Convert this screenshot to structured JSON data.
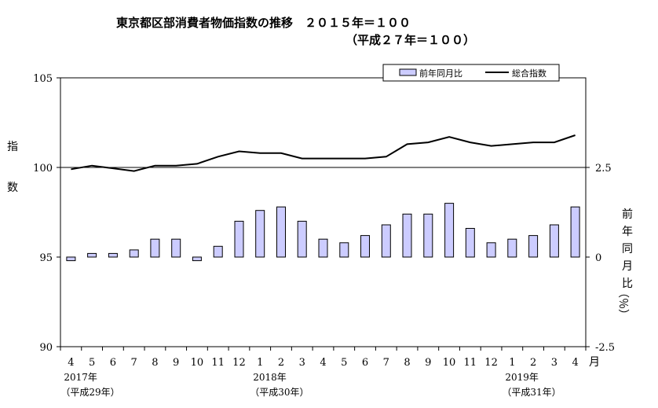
{
  "chart_data": {
    "type": "bar+line",
    "title_line1": "東京都区部消費者物価指数の推移　２０１５年＝１００",
    "title_line2": "（平成２７年＝１００）",
    "left_axis_label": "指数",
    "right_axis_label": "前年同月比",
    "right_axis_unit": "（％）",
    "x_unit": "月",
    "left_ylim": [
      90,
      105
    ],
    "left_ticks": [
      "105",
      "100",
      "95",
      "90"
    ],
    "right_ylim": [
      -2.5,
      5
    ],
    "right_ticks": [
      "2.5",
      "0",
      "-2.5"
    ],
    "reference_line_index": 100,
    "categories": [
      "4",
      "5",
      "6",
      "7",
      "8",
      "9",
      "10",
      "11",
      "12",
      "1",
      "2",
      "3",
      "4",
      "5",
      "6",
      "7",
      "8",
      "9",
      "10",
      "11",
      "12",
      "1",
      "2",
      "3",
      "4"
    ],
    "year_labels": [
      {
        "index": 0,
        "year": "2017年",
        "era": "（平成29年）"
      },
      {
        "index": 9,
        "year": "2018年",
        "era": "（平成30年）"
      },
      {
        "index": 21,
        "year": "2019年",
        "era": "（平成31年）"
      }
    ],
    "legend_position": "top-right",
    "series": [
      {
        "name": "前年同月比",
        "type": "bar",
        "axis": "right",
        "color": "#ccccff",
        "values": [
          -0.1,
          0.1,
          0.1,
          0.2,
          0.5,
          0.5,
          -0.1,
          0.3,
          1.0,
          1.3,
          1.4,
          1.0,
          0.5,
          0.4,
          0.6,
          0.9,
          1.2,
          1.2,
          1.5,
          0.8,
          0.4,
          0.5,
          0.6,
          0.9,
          1.4
        ]
      },
      {
        "name": "総合指数",
        "type": "line",
        "axis": "left",
        "color": "#000000",
        "values": [
          99.9,
          100.1,
          99.95,
          99.8,
          100.1,
          100.1,
          100.2,
          100.6,
          100.9,
          100.8,
          100.8,
          100.5,
          100.5,
          100.5,
          100.5,
          100.6,
          101.3,
          101.4,
          101.7,
          101.4,
          101.2,
          101.3,
          101.4,
          101.4,
          101.8
        ]
      }
    ]
  }
}
